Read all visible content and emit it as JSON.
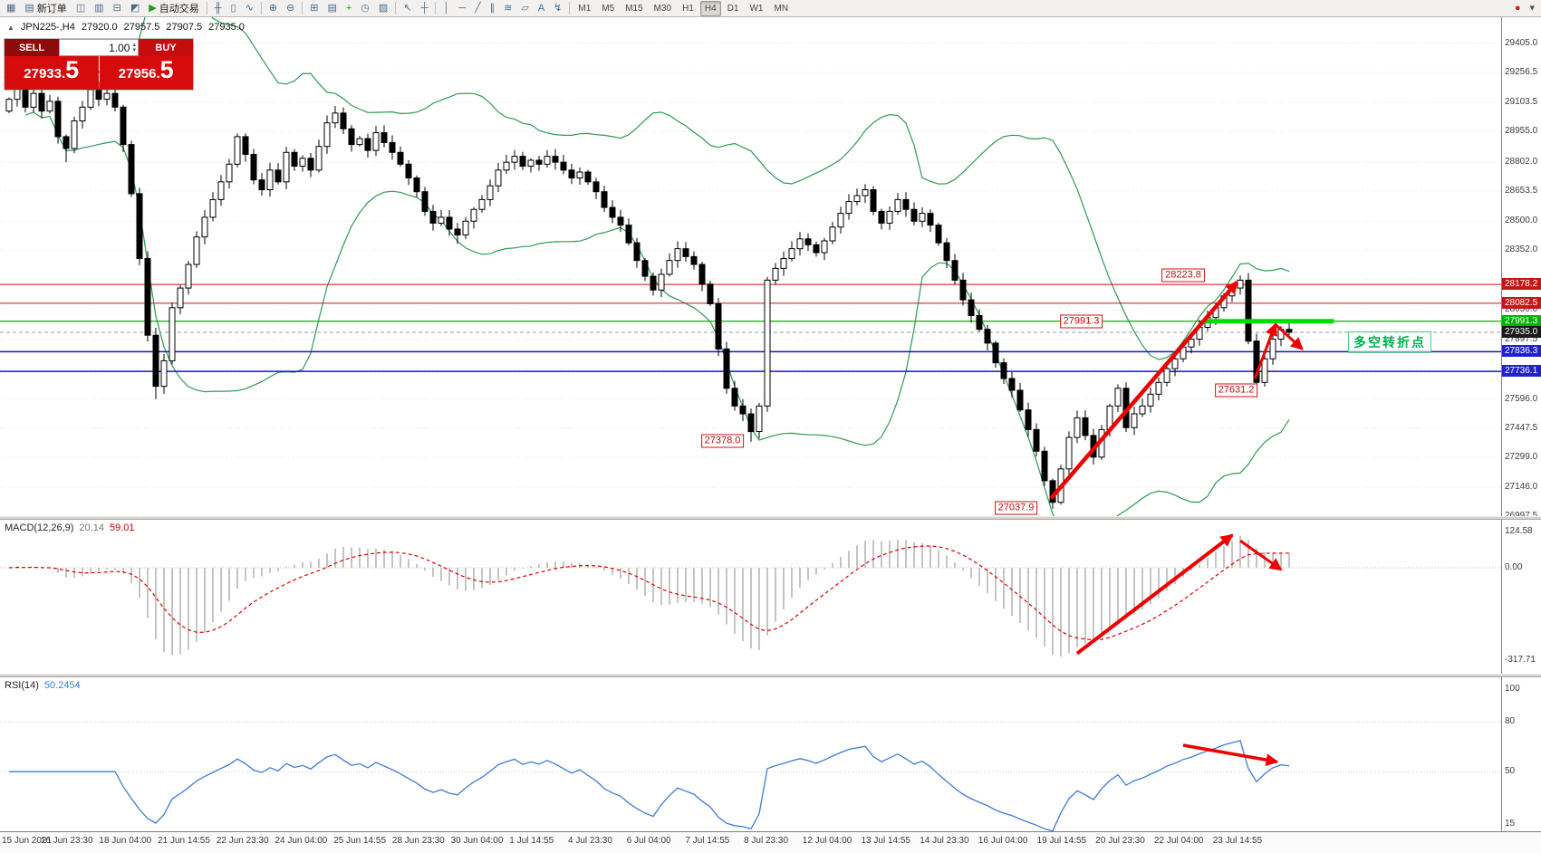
{
  "toolbar": {
    "left_items": [
      {
        "name": "chart-window-icon",
        "glyph": "▦"
      },
      {
        "name": "new-order-button",
        "glyph": "▤",
        "label": "新订单"
      },
      {
        "name": "market-watch-icon",
        "glyph": "◫"
      },
      {
        "name": "data-window-icon",
        "glyph": "▥"
      },
      {
        "name": "navigator-icon",
        "glyph": "⊟"
      },
      {
        "name": "strategy-tester-icon",
        "glyph": "◩"
      },
      {
        "name": "autotrading-button",
        "glyph": "▶",
        "color": "#1a9e1a",
        "label": "自动交易"
      },
      {
        "sep": true
      },
      {
        "name": "bar-chart-icon",
        "glyph": "╫"
      },
      {
        "name": "candlestick-chart-icon",
        "glyph": "▯"
      },
      {
        "name": "line-chart-icon",
        "glyph": "∿"
      },
      {
        "sep": true
      },
      {
        "name": "zoom-in-icon",
        "glyph": "⊕"
      },
      {
        "name": "zoom-out-icon",
        "glyph": "⊖"
      },
      {
        "sep": true
      },
      {
        "name": "tile-windows-icon",
        "glyph": "⊞"
      },
      {
        "name": "auto-arrange-icon",
        "glyph": "▤"
      },
      {
        "name": "add-indicator-icon",
        "glyph": "+",
        "color": "#1a9e1a"
      },
      {
        "name": "period-dropdown-icon",
        "glyph": "◷"
      },
      {
        "name": "templates-icon",
        "glyph": "▨"
      },
      {
        "sep": true
      },
      {
        "name": "cursor-icon",
        "glyph": "↖"
      },
      {
        "name": "crosshair-icon",
        "glyph": "┼"
      },
      {
        "sep": true
      },
      {
        "name": "vertical-line-icon",
        "glyph": "│"
      },
      {
        "name": "horizontal-line-icon",
        "glyph": "─"
      },
      {
        "name": "trendline-icon",
        "glyph": "╱"
      },
      {
        "name": "equidistant-channel-icon",
        "glyph": "∥"
      },
      {
        "name": "fibonacci-icon",
        "glyph": "≋"
      },
      {
        "name": "shapes-icon",
        "glyph": "▱"
      },
      {
        "name": "text-icon",
        "glyph": "A"
      },
      {
        "name": "arrows-icon",
        "glyph": "↯"
      },
      {
        "sep": true
      }
    ],
    "timeframes": [
      {
        "label": "M1"
      },
      {
        "label": "M5"
      },
      {
        "label": "M15"
      },
      {
        "label": "M30"
      },
      {
        "label": "H1"
      },
      {
        "label": "H4",
        "active": true
      },
      {
        "label": "D1"
      },
      {
        "label": "W1"
      },
      {
        "label": "MN"
      }
    ],
    "right_items": [
      {
        "name": "alerts-icon",
        "glyph": "●",
        "color": "#cc2222"
      },
      {
        "name": "toolbar-options-icon",
        "glyph": "▾",
        "color": "#555555"
      }
    ]
  },
  "symbol_info": {
    "marker": "▲",
    "name": "JPN225-,H4",
    "open": "27920.0",
    "high": "27957.5",
    "low": "27907.5",
    "close": "27935.0"
  },
  "trade_panel": {
    "sell_label": "SELL",
    "buy_label": "BUY",
    "lot": "1.00",
    "up_glyph": "▴",
    "down_glyph": "▾",
    "sell_price_main": "27933.",
    "sell_price_big": "5",
    "buy_price_main": "27956.",
    "buy_price_big": "5"
  },
  "indicators": {
    "macd_label": "MACD(12,26,9)",
    "macd_main": "20.14",
    "macd_signal": "59.01",
    "rsi_label": "RSI(14)",
    "rsi_value": "50.2454"
  },
  "annotation": {
    "text": "多空转折点"
  },
  "colors": {
    "bull": "#ffffff",
    "bear": "#000000",
    "outline": "#000000",
    "bollinger": "#2d9a55",
    "grid": "#e3e3e3",
    "red_line": "#cc1111",
    "blue_line": "#1515cc",
    "green_line": "#00b400",
    "bright_green": "#00dd00",
    "arrow": "#ee0000",
    "macd_hist": "#b6b6b6",
    "macd_signal": "#dd0000",
    "rsi": "#3e7bd6",
    "current_price_line": "#999999"
  },
  "chart_data": {
    "type": "candlestick",
    "symbol": "JPN225-",
    "timeframe": "H4",
    "first_open": 29060,
    "closes": [
      29120,
      29190,
      29080,
      29150,
      29060,
      29110,
      28930,
      28870,
      29010,
      29080,
      29170,
      29120,
      29150,
      29080,
      28890,
      28640,
      28310,
      27920,
      27660,
      27790,
      28060,
      28160,
      28280,
      28420,
      28520,
      28610,
      28700,
      28790,
      28930,
      28840,
      28710,
      28660,
      28760,
      28700,
      28850,
      28780,
      28820,
      28760,
      28880,
      29000,
      29050,
      28970,
      28890,
      28920,
      28860,
      28950,
      28900,
      28850,
      28790,
      28720,
      28650,
      28550,
      28490,
      28520,
      28460,
      28430,
      28500,
      28560,
      28610,
      28680,
      28760,
      28800,
      28830,
      28780,
      28810,
      28790,
      28830,
      28800,
      28760,
      28720,
      28750,
      28700,
      28650,
      28570,
      28520,
      28480,
      28390,
      28300,
      28220,
      28150,
      28230,
      28300,
      28360,
      28320,
      28280,
      28180,
      28080,
      27850,
      27650,
      27560,
      27520,
      27430,
      27560,
      28200,
      28260,
      28310,
      28360,
      28410,
      28380,
      28340,
      28400,
      28470,
      28540,
      28600,
      28630,
      28660,
      28550,
      28490,
      28550,
      28610,
      28560,
      28500,
      28540,
      28480,
      28390,
      28300,
      28200,
      28100,
      28020,
      27950,
      27880,
      27780,
      27700,
      27640,
      27540,
      27440,
      27330,
      27180,
      27070,
      27240,
      27400,
      27500,
      27410,
      27300,
      27440,
      27560,
      27650,
      27450,
      27520,
      27560,
      27620,
      27680,
      27750,
      27800,
      27860,
      27900,
      27960,
      28010,
      28060,
      28120,
      28160,
      28200,
      27890,
      27680,
      27800,
      27900,
      27950,
      27935
    ],
    "special_wicks": {
      "7": {
        "low": 28800
      },
      "18": {
        "low": 27595
      },
      "55": {
        "low": 28385
      },
      "91": {
        "low": 27378.0
      },
      "128": {
        "low": 27037.9
      },
      "151": {
        "high": 28223.8
      },
      "153": {
        "low": 27631.2
      },
      "157": {
        "high": 27991.0
      }
    },
    "bollinger": {
      "period": 20,
      "deviation": 2
    },
    "hlines": [
      {
        "price": 28178.2,
        "color": "#cc1111",
        "width": 1
      },
      {
        "price": 28082.5,
        "color": "#cc1111",
        "width": 1
      },
      {
        "price": 27991.3,
        "color": "#00b400",
        "width": 1.2
      },
      {
        "price": 27836.3,
        "color": "#1515cc",
        "width": 1.5
      },
      {
        "price": 27736.1,
        "color": "#1515cc",
        "width": 1.5
      }
    ],
    "current_price": 27935.0,
    "green_segment": {
      "price": 27991.3,
      "from_index": 146.5,
      "to_index": 162.5
    },
    "callouts": [
      {
        "text": "28223.8",
        "index": 144.0,
        "price": 28225
      },
      {
        "text": "27991.3",
        "index": 131.5,
        "price": 27991
      },
      {
        "text": "27631.2",
        "index": 150.5,
        "price": 27640
      },
      {
        "text": "27378.0",
        "index": 87.5,
        "price": 27383
      },
      {
        "text": "27037.9",
        "index": 123.5,
        "price": 27043
      }
    ],
    "arrows_main": [
      {
        "from": {
          "index": 127.8,
          "price": 27090
        },
        "to": {
          "index": 150.6,
          "price": 28190
        },
        "width": 4.5
      },
      {
        "from": {
          "index": 152.8,
          "price": 27700
        },
        "to": {
          "index": 155.3,
          "price": 27975
        },
        "width": 3
      },
      {
        "from": {
          "index": 155.3,
          "price": 27975
        },
        "to": {
          "index": 158.6,
          "price": 27850
        },
        "width": 3
      }
    ],
    "price_axis": {
      "range": [
        26997.5,
        29405.0
      ],
      "gridlines": [
        29405.0,
        29256.5,
        29103.5,
        28955.0,
        28802.0,
        28653.5,
        28500.0,
        28352.0,
        28203.5,
        28050.0,
        27897.5,
        27748.0,
        27596.0,
        27447.5,
        27299.0,
        27146.0,
        26997.5
      ],
      "labels": [
        {
          "text": "29405.0",
          "value": 29405.0
        },
        {
          "text": "29256.5",
          "value": 29256.5
        },
        {
          "text": "29103.5",
          "value": 29103.5
        },
        {
          "text": "28955.0",
          "value": 28955.0
        },
        {
          "text": "28802.0",
          "value": 28802.0
        },
        {
          "text": "28653.5",
          "value": 28653.5
        },
        {
          "text": "28500.0",
          "value": 28500.0
        },
        {
          "text": "28352.0",
          "value": 28352.0
        },
        {
          "text": "28050.0",
          "value": 28050.0
        },
        {
          "text": "27897.5",
          "value": 27897.5
        },
        {
          "text": "27596.0",
          "value": 27596.0
        },
        {
          "text": "27447.5",
          "value": 27447.5
        },
        {
          "text": "27299.0",
          "value": 27299.0
        },
        {
          "text": "27146.0",
          "value": 27146.0
        },
        {
          "text": "26997.5",
          "value": 26997.5
        }
      ],
      "badges": [
        {
          "text": "28178.2",
          "price": 28178.2,
          "color": "#c81616"
        },
        {
          "text": "28082.5",
          "price": 28082.5,
          "color": "#c81616"
        },
        {
          "text": "27991.3",
          "price": 27991.3,
          "color": "#00b400"
        },
        {
          "text": "27935.0",
          "price": 27935.0,
          "color": "#1a1a1a"
        },
        {
          "text": "27836.3",
          "price": 27836.3,
          "color": "#2222cc"
        },
        {
          "text": "27736.1",
          "price": 27736.1,
          "color": "#2222cc"
        }
      ]
    },
    "macd": {
      "fast": 12,
      "slow": 26,
      "signal": 9,
      "scale_labels": [
        {
          "text": "124.58",
          "value": 124.58
        },
        {
          "text": "0.00",
          "value": 0
        },
        {
          "text": "-317.71",
          "value": -317.71
        }
      ],
      "arrows": [
        {
          "from": [
            131,
            -294
          ],
          "to": [
            150,
            112
          ],
          "width": 4
        },
        {
          "from": [
            151,
            93
          ],
          "to": [
            156,
            -6
          ],
          "width": 3
        }
      ]
    },
    "rsi": {
      "period": 14,
      "scale_labels": [
        {
          "text": "100",
          "value": 100
        },
        {
          "text": "80",
          "value": 80
        },
        {
          "text": "50",
          "value": 50
        },
        {
          "text": "15",
          "value": 15
        }
      ],
      "levels": [
        80,
        50
      ],
      "arrow": {
        "from": [
          144,
          66
        ],
        "to": [
          155.5,
          56
        ],
        "width": 3.5
      }
    },
    "time_axis": {
      "labels": [
        "15 Jun 2021",
        "16 Jun 23:30",
        "18 Jun 04:00",
        "21 Jun 14:55",
        "22 Jun 23:30",
        "24 Jun 04:00",
        "25 Jun 14:55",
        "28 Jun 23:30",
        "30 Jun 04:00",
        "1 Jul 14:55",
        "4 Jul 23:30",
        "6 Jul 04:00",
        "7 Jul 14:55",
        "8 Jul 23:30",
        "12 Jul 04:00",
        "13 Jul 14:55",
        "14 Jul 23:30",
        "16 Jul 04:00",
        "19 Jul 14:55",
        "20 Jul 23:30",
        "22 Jul 04:00",
        "23 Jul 14:55"
      ]
    }
  }
}
